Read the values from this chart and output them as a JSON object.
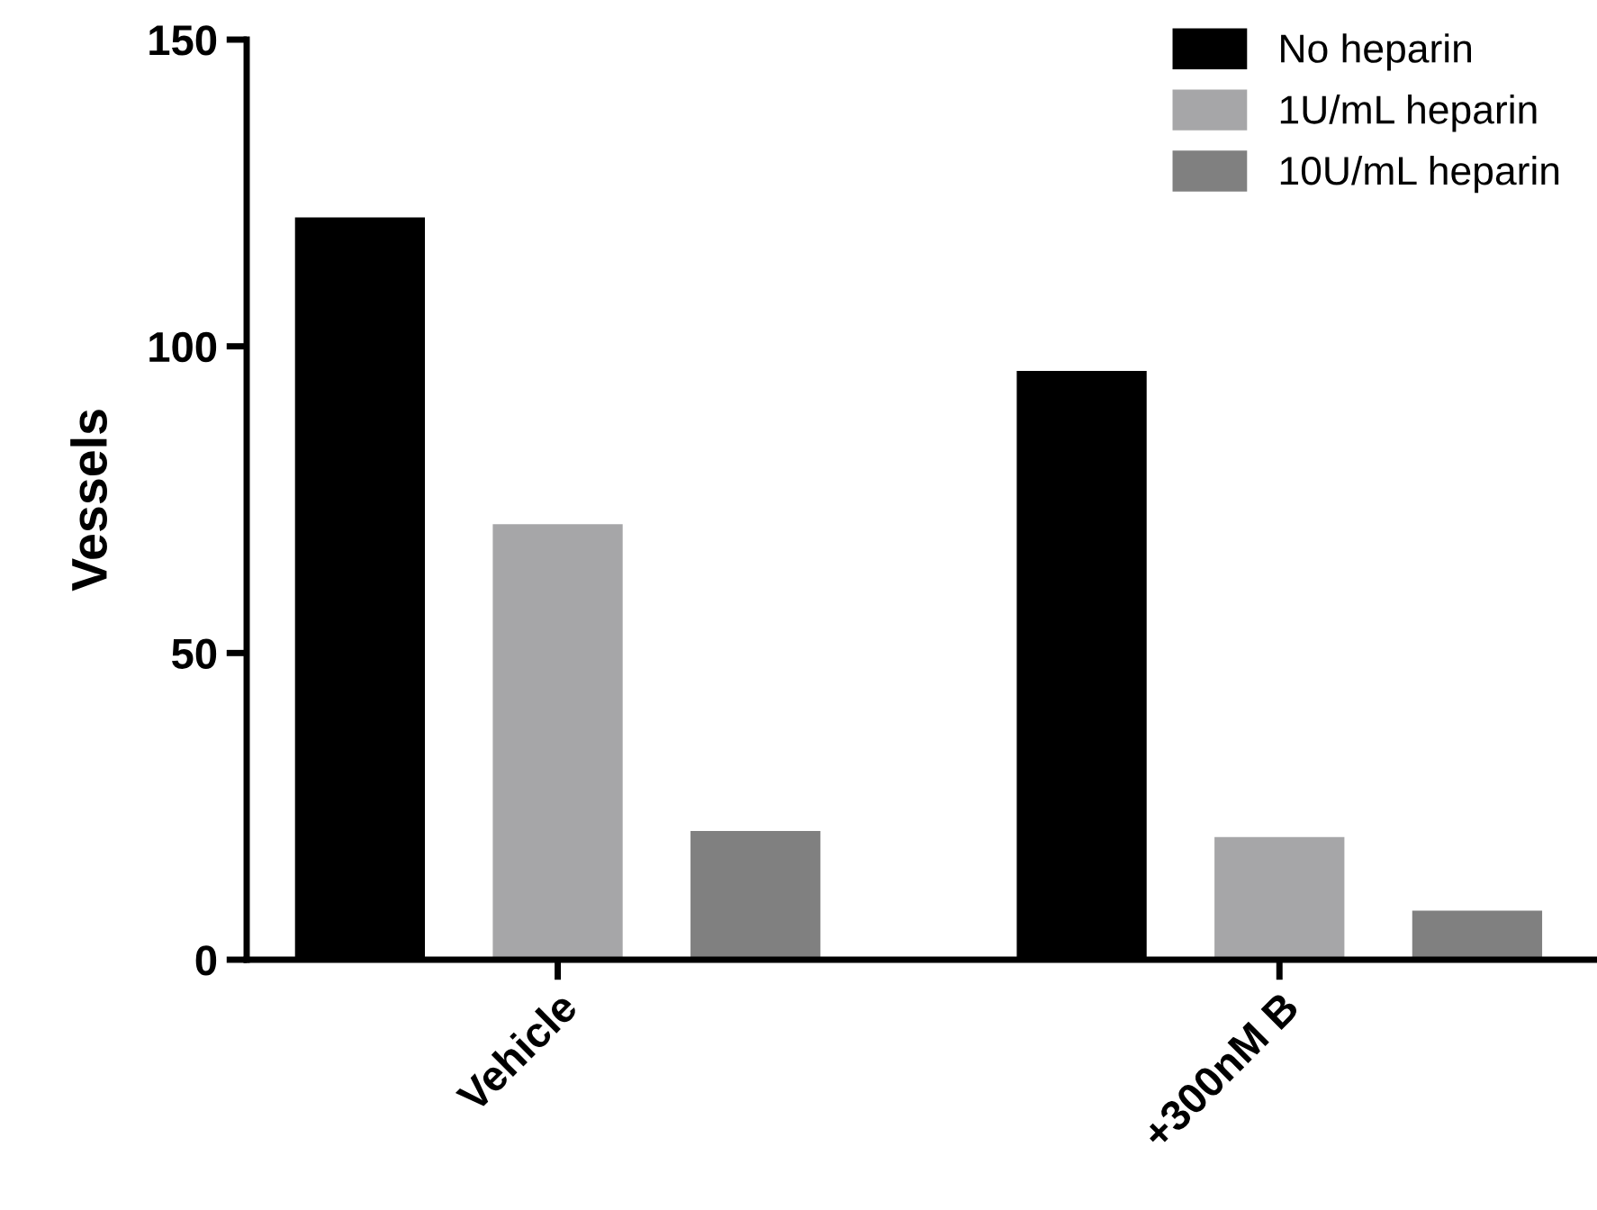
{
  "chart_data": {
    "type": "bar",
    "ylabel": "Vessels",
    "categories": [
      "Vehicle",
      "+300nM B"
    ],
    "series": [
      {
        "name": "No heparin",
        "color": "#000000",
        "values": [
          121,
          96
        ]
      },
      {
        "name": "1U/mL heparin",
        "color": "#a6a6a8",
        "values": [
          71,
          20
        ]
      },
      {
        "name": "10U/mL heparin",
        "color": "#808080",
        "values": [
          21,
          8
        ]
      }
    ],
    "ylim": [
      0,
      150
    ],
    "yticks": [
      0,
      50,
      100,
      150
    ],
    "grid": false,
    "legend": "top right"
  }
}
